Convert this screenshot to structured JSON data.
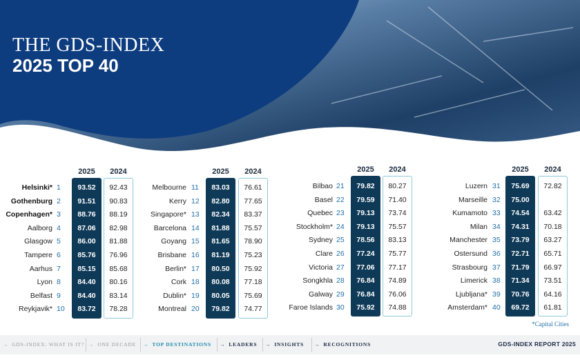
{
  "header": {
    "title": "THE GDS-INDEX",
    "subtitle": "2025 TOP 40"
  },
  "table": {
    "columns": [
      "2025",
      "2024"
    ],
    "groups": [
      {
        "rows": [
          {
            "city": "Helsinki*",
            "rank": 1,
            "score_2025": "93.52",
            "score_2024": "92.43",
            "bold": true
          },
          {
            "city": "Gothenburg",
            "rank": 2,
            "score_2025": "91.51",
            "score_2024": "90.83",
            "bold": true
          },
          {
            "city": "Copenhagen*",
            "rank": 3,
            "score_2025": "88.76",
            "score_2024": "88.19",
            "bold": true
          },
          {
            "city": "Aalborg",
            "rank": 4,
            "score_2025": "87.06",
            "score_2024": "82.98"
          },
          {
            "city": "Glasgow",
            "rank": 5,
            "score_2025": "86.00",
            "score_2024": "81.88"
          },
          {
            "city": "Tampere",
            "rank": 6,
            "score_2025": "85.76",
            "score_2024": "76.96"
          },
          {
            "city": "Aarhus",
            "rank": 7,
            "score_2025": "85.15",
            "score_2024": "85.68"
          },
          {
            "city": "Lyon",
            "rank": 8,
            "score_2025": "84.40",
            "score_2024": "80.16"
          },
          {
            "city": "Belfast",
            "rank": 9,
            "score_2025": "84.40",
            "score_2024": "83.14"
          },
          {
            "city": "Reykjavik*",
            "rank": 10,
            "score_2025": "83.72",
            "score_2024": "78.28"
          }
        ]
      },
      {
        "rows": [
          {
            "city": "Melbourne",
            "rank": 11,
            "score_2025": "83.03",
            "score_2024": "76.61"
          },
          {
            "city": "Kerry",
            "rank": 12,
            "score_2025": "82.80",
            "score_2024": "77.65"
          },
          {
            "city": "Singapore*",
            "rank": 13,
            "score_2025": "82.34",
            "score_2024": "83.37"
          },
          {
            "city": "Barcelona",
            "rank": 14,
            "score_2025": "81.88",
            "score_2024": "75.57"
          },
          {
            "city": "Goyang",
            "rank": 15,
            "score_2025": "81.65",
            "score_2024": "78.90"
          },
          {
            "city": "Brisbane",
            "rank": 16,
            "score_2025": "81.19",
            "score_2024": "75.23"
          },
          {
            "city": "Berlin*",
            "rank": 17,
            "score_2025": "80.50",
            "score_2024": "75.92"
          },
          {
            "city": "Cork",
            "rank": 18,
            "score_2025": "80.08",
            "score_2024": "77.18"
          },
          {
            "city": "Dublin*",
            "rank": 19,
            "score_2025": "80.05",
            "score_2024": "75.69"
          },
          {
            "city": "Montreal",
            "rank": 20,
            "score_2025": "79.82",
            "score_2024": "74.77"
          }
        ]
      },
      {
        "rows": [
          {
            "city": "Bilbao",
            "rank": 21,
            "score_2025": "79.82",
            "score_2024": "80.27"
          },
          {
            "city": "Basel",
            "rank": 22,
            "score_2025": "79.59",
            "score_2024": "71.40"
          },
          {
            "city": "Quebec",
            "rank": 23,
            "score_2025": "79.13",
            "score_2024": "73.74"
          },
          {
            "city": "Stockholm*",
            "rank": 24,
            "score_2025": "79.13",
            "score_2024": "75.57"
          },
          {
            "city": "Sydney",
            "rank": 25,
            "score_2025": "78.56",
            "score_2024": "83.13"
          },
          {
            "city": "Clare",
            "rank": 26,
            "score_2025": "77.24",
            "score_2024": "75.77"
          },
          {
            "city": "Victoria",
            "rank": 27,
            "score_2025": "77.06",
            "score_2024": "77.17"
          },
          {
            "city": "Songkhla",
            "rank": 28,
            "score_2025": "76.84",
            "score_2024": "74.89"
          },
          {
            "city": "Galway",
            "rank": 29,
            "score_2025": "76.84",
            "score_2024": "76.06"
          },
          {
            "city": "Faroe Islands",
            "rank": 30,
            "score_2025": "75.92",
            "score_2024": "74.88"
          }
        ]
      },
      {
        "rows": [
          {
            "city": "Luzern",
            "rank": 31,
            "score_2025": "75.69",
            "score_2024": "72.82"
          },
          {
            "city": "Marseille",
            "rank": 32,
            "score_2025": "75.00",
            "score_2024": null
          },
          {
            "city": "Kumamoto",
            "rank": 33,
            "score_2025": "74.54",
            "score_2024": "63.42"
          },
          {
            "city": "Milan",
            "rank": 34,
            "score_2025": "74.31",
            "score_2024": "70.18"
          },
          {
            "city": "Manchester",
            "rank": 35,
            "score_2025": "73.79",
            "score_2024": "63.27"
          },
          {
            "city": "Ostersund",
            "rank": 36,
            "score_2025": "72.71",
            "score_2024": "65.71"
          },
          {
            "city": "Strasbourg",
            "rank": 37,
            "score_2025": "71.79",
            "score_2024": "66.97"
          },
          {
            "city": "Limerick",
            "rank": 38,
            "score_2025": "71.34",
            "score_2024": "73.51"
          },
          {
            "city": "Ljubljana*",
            "rank": 39,
            "score_2025": "70.76",
            "score_2024": "64.16"
          },
          {
            "city": "Amsterdam*",
            "rank": 40,
            "score_2025": "69.72",
            "score_2024": "61.81"
          }
        ]
      }
    ]
  },
  "footnote": "*Capital Cities",
  "nav": {
    "items": [
      "GDS-INDEX: WHAT IS IT?",
      "ONE DECADE",
      "TOP DESTINATIONS",
      "LEADERS",
      "INSIGHTS",
      "RECOGNITIONS"
    ],
    "active": 2,
    "report": "GDS-INDEX REPORT 2025"
  }
}
